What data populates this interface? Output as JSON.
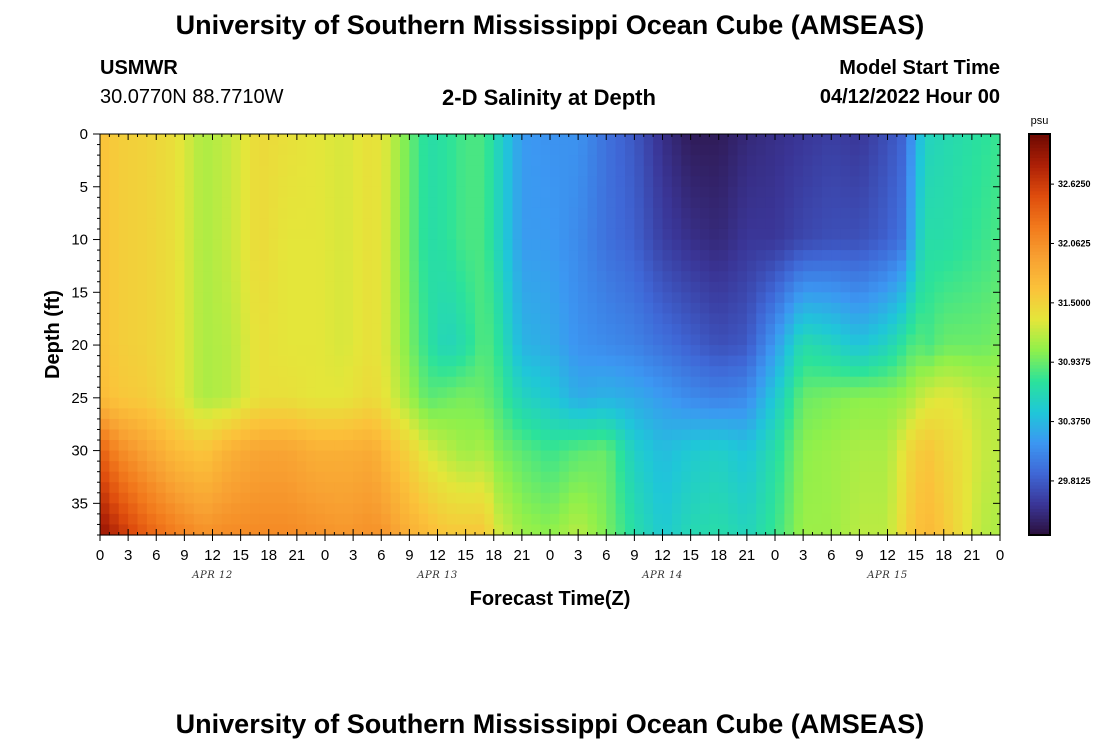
{
  "header": {
    "title": "University of Southern Mississippi Ocean Cube (AMSEAS)",
    "station": "USMWR",
    "coords": "30.0770N  88.7710W",
    "plot_title": "2-D Salinity at Depth",
    "model_start_label": "Model Start Time",
    "model_start_value": "04/12/2022 Hour 00"
  },
  "footer": {
    "title": "University of Southern Mississippi Ocean Cube (AMSEAS)"
  },
  "colors": {
    "scale": [
      "#2b0f3a",
      "#3a3596",
      "#3f67d6",
      "#3c97f2",
      "#1fc7d8",
      "#2be29b",
      "#8ff04b",
      "#e4e63a",
      "#fbc23a",
      "#f8a132",
      "#f27a1c",
      "#df4d0d",
      "#ad2006",
      "#6e0902"
    ]
  },
  "chart_data": {
    "type": "heatmap",
    "title": "2-D Salinity at Depth",
    "xlabel": "Forecast Time(Z)",
    "ylabel": "Depth (ft)",
    "x_tick_labels": [
      "0",
      "3",
      "6",
      "9",
      "12",
      "15",
      "18",
      "21",
      "0",
      "3",
      "6",
      "9",
      "12",
      "15",
      "18",
      "21",
      "0",
      "3",
      "6",
      "9",
      "12",
      "15",
      "18",
      "21",
      "0",
      "3",
      "6",
      "9",
      "12",
      "15",
      "18",
      "21",
      "0"
    ],
    "x_hours": [
      0,
      96
    ],
    "day_labels": [
      {
        "label": "APR 12",
        "hour": 12
      },
      {
        "label": "APR 13",
        "hour": 36
      },
      {
        "label": "APR 14",
        "hour": 60
      },
      {
        "label": "APR 15",
        "hour": 84
      }
    ],
    "y_ticks": [
      0,
      5,
      10,
      15,
      20,
      25,
      30,
      35
    ],
    "ylim": [
      38,
      0
    ],
    "colorbar": {
      "unit": "psu",
      "range": [
        29.3,
        33.1
      ],
      "tick_labels": [
        "32.6250",
        "32.0625",
        "31.5000",
        "30.9375",
        "30.3750",
        "29.8125"
      ],
      "tick_values": [
        32.625,
        32.0625,
        31.5,
        30.9375,
        30.375,
        29.8125
      ]
    },
    "depths": [
      0,
      10,
      20,
      25,
      30,
      38
    ],
    "profiles": [
      {
        "hour": 0,
        "values": [
          31.65,
          31.65,
          31.65,
          31.7,
          32.4,
          32.95
        ]
      },
      {
        "hour": 2,
        "values": [
          31.55,
          31.55,
          31.55,
          31.6,
          32.1,
          32.7
        ]
      },
      {
        "hour": 5,
        "values": [
          31.5,
          31.5,
          31.5,
          31.55,
          31.9,
          32.4
        ]
      },
      {
        "hour": 8,
        "values": [
          31.4,
          31.4,
          31.4,
          31.4,
          31.7,
          32.2
        ]
      },
      {
        "hour": 11,
        "values": [
          31.15,
          31.15,
          31.15,
          31.15,
          31.6,
          32.05
        ]
      },
      {
        "hour": 14,
        "values": [
          31.25,
          31.25,
          31.2,
          31.2,
          31.8,
          32.1
        ]
      },
      {
        "hour": 17,
        "values": [
          31.45,
          31.45,
          31.4,
          31.4,
          31.9,
          32.1
        ]
      },
      {
        "hour": 20,
        "values": [
          31.4,
          31.35,
          31.35,
          31.4,
          31.9,
          32.1
        ]
      },
      {
        "hour": 23,
        "values": [
          31.35,
          31.35,
          31.35,
          31.35,
          31.8,
          32.05
        ]
      },
      {
        "hour": 26,
        "values": [
          31.3,
          31.3,
          31.3,
          31.35,
          31.8,
          32.0
        ]
      },
      {
        "hour": 29,
        "values": [
          31.4,
          31.4,
          31.4,
          31.45,
          31.85,
          32.05
        ]
      },
      {
        "hour": 30.5,
        "values": [
          31.3,
          31.3,
          31.3,
          31.35,
          31.7,
          32.0
        ]
      },
      {
        "hour": 33,
        "values": [
          30.95,
          30.95,
          31.0,
          31.1,
          31.5,
          31.8
        ]
      },
      {
        "hour": 35,
        "values": [
          30.7,
          30.7,
          30.75,
          30.9,
          31.3,
          31.7
        ]
      },
      {
        "hour": 37,
        "values": [
          30.75,
          30.75,
          30.6,
          30.95,
          31.2,
          31.6
        ]
      },
      {
        "hour": 39,
        "values": [
          30.85,
          30.85,
          30.7,
          31.0,
          31.1,
          31.6
        ]
      },
      {
        "hour": 41,
        "values": [
          30.85,
          30.85,
          30.9,
          30.95,
          31.15,
          31.6
        ]
      },
      {
        "hour": 42.5,
        "values": [
          30.6,
          30.6,
          30.75,
          30.85,
          31.0,
          31.3
        ]
      },
      {
        "hour": 45,
        "values": [
          30.2,
          30.2,
          30.35,
          30.6,
          30.9,
          31.1
        ]
      },
      {
        "hour": 48,
        "values": [
          30.15,
          30.2,
          30.3,
          30.5,
          30.8,
          31.05
        ]
      },
      {
        "hour": 51,
        "values": [
          30.15,
          30.1,
          30.15,
          30.3,
          30.9,
          31.2
        ]
      },
      {
        "hour": 54,
        "values": [
          29.95,
          29.95,
          30.1,
          30.35,
          30.95,
          31.0
        ]
      },
      {
        "hour": 57,
        "values": [
          29.8,
          29.85,
          30.05,
          30.3,
          30.55,
          30.7
        ]
      },
      {
        "hour": 60,
        "values": [
          29.55,
          29.65,
          29.95,
          30.2,
          30.4,
          30.5
        ]
      },
      {
        "hour": 63,
        "values": [
          29.4,
          29.55,
          29.85,
          30.1,
          30.5,
          30.65
        ]
      },
      {
        "hour": 66,
        "values": [
          29.4,
          29.5,
          29.75,
          30.05,
          30.55,
          30.7
        ]
      },
      {
        "hour": 69,
        "values": [
          29.5,
          29.6,
          29.8,
          30.1,
          30.45,
          30.6
        ]
      },
      {
        "hour": 72,
        "values": [
          29.55,
          29.6,
          30.2,
          30.5,
          30.7,
          30.8
        ]
      },
      {
        "hour": 75,
        "values": [
          29.6,
          29.7,
          30.7,
          30.95,
          31.05,
          31.1
        ]
      },
      {
        "hour": 78,
        "values": [
          29.65,
          29.75,
          30.6,
          31.0,
          31.1,
          31.1
        ]
      },
      {
        "hour": 81,
        "values": [
          29.6,
          29.75,
          30.45,
          31.05,
          31.15,
          31.2
        ]
      },
      {
        "hour": 84,
        "values": [
          29.75,
          29.85,
          30.6,
          31.05,
          31.15,
          31.2
        ]
      },
      {
        "hour": 86,
        "values": [
          29.9,
          30.0,
          30.8,
          31.1,
          31.4,
          31.5
        ]
      },
      {
        "hour": 87,
        "values": [
          30.35,
          30.5,
          30.9,
          31.2,
          31.55,
          31.65
        ]
      },
      {
        "hour": 88.5,
        "values": [
          30.6,
          30.7,
          30.85,
          31.3,
          31.6,
          31.7
        ]
      },
      {
        "hour": 90,
        "values": [
          30.65,
          30.7,
          30.95,
          31.35,
          31.5,
          31.6
        ]
      },
      {
        "hour": 92,
        "values": [
          30.7,
          30.75,
          30.95,
          31.3,
          31.4,
          31.4
        ]
      },
      {
        "hour": 94,
        "values": [
          30.75,
          30.8,
          30.95,
          31.2,
          31.25,
          31.2
        ]
      },
      {
        "hour": 96,
        "values": [
          30.8,
          30.85,
          31.0,
          31.2,
          31.2,
          31.15
        ]
      }
    ]
  }
}
